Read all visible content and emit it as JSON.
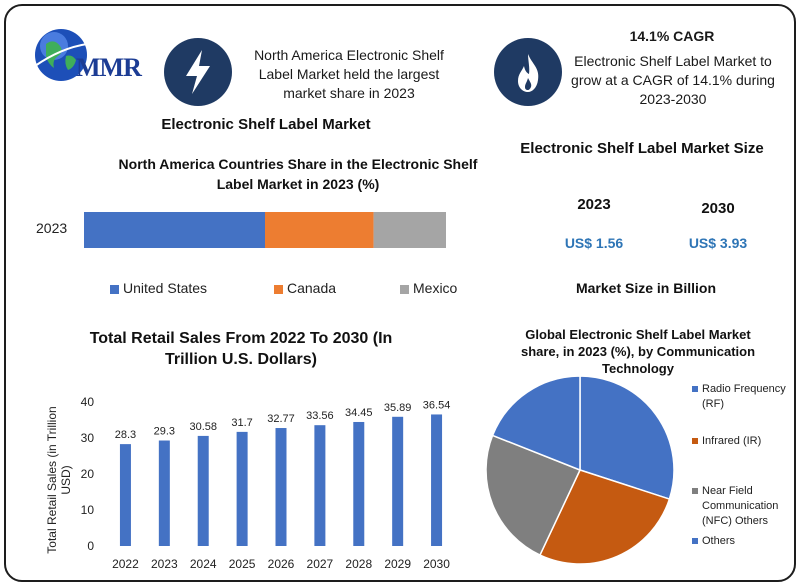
{
  "header": {
    "logo_text": "MMR",
    "info1": "North America Electronic Shelf Label Market held the largest market share in 2023",
    "cagr_title": "14.1% CAGR",
    "cagr_text": "Electronic Shelf Label Market to grow at a CAGR of 14.1% during 2023-2030",
    "icon1": "lightning-icon",
    "icon2": "flame-icon"
  },
  "left_title": "Electronic Shelf Label Market",
  "market_size": {
    "title": "Electronic Shelf Label Market Size",
    "year_a": "2023",
    "year_b": "2030",
    "value_a": "US$ 1.56",
    "value_b": "US$ 3.93",
    "unit_caption": "Market Size in Billion"
  },
  "colors": {
    "blue": "#4472c4",
    "orange": "#ed7d31",
    "gray": "#a5a5a5",
    "navy": "#1f3a63",
    "value_blue": "#2e75b6"
  },
  "chart_data": [
    {
      "type": "bar",
      "orientation": "horizontal-stacked",
      "title": "North America Countries Share in the Electronic Shelf Label Market in 2023 (%)",
      "categories": [
        "2023"
      ],
      "series": [
        {
          "name": "United States",
          "values": [
            50
          ],
          "color": "#4472c4"
        },
        {
          "name": "Canada",
          "values": [
            30
          ],
          "color": "#ed7d31"
        },
        {
          "name": "Mexico",
          "values": [
            20
          ],
          "color": "#a5a5a5"
        }
      ],
      "legend": "bottom"
    },
    {
      "type": "bar",
      "title": "Total Retail Sales From 2022 To 2030 (In Trillion U.S. Dollars)",
      "ylabel": "Total Retail Sales (in Trillion USD)",
      "categories": [
        "2022",
        "2023",
        "2024",
        "2025",
        "2026",
        "2027",
        "2028",
        "2029",
        "2030"
      ],
      "values": [
        28.3,
        29.3,
        30.58,
        31.7,
        32.77,
        33.56,
        34.45,
        35.89,
        36.54
      ],
      "data_labels": [
        "28.3",
        "29.3",
        "30.58",
        "31.7",
        "32.77",
        "33.56",
        "34.45",
        "35.89",
        "36.54"
      ],
      "yticks": [
        "0",
        "10",
        "20",
        "30",
        "40"
      ],
      "ylim": [
        0,
        40
      ],
      "color": "#4472c4"
    },
    {
      "type": "pie",
      "title": "Global Electronic Shelf Label Market share, in 2023 (%), by Communication Technology",
      "series": [
        {
          "name": "Radio Frequency (RF)",
          "value": 30,
          "color": "#4472c4"
        },
        {
          "name": "Infrared (IR)",
          "value": 27,
          "color": "#c55a11"
        },
        {
          "name": "Near Field Communication (NFC) Others",
          "value": 24,
          "color": "#7f7f7f"
        },
        {
          "name": "Others",
          "value": 19,
          "color": "#4472c4"
        }
      ],
      "legend": "right"
    }
  ]
}
